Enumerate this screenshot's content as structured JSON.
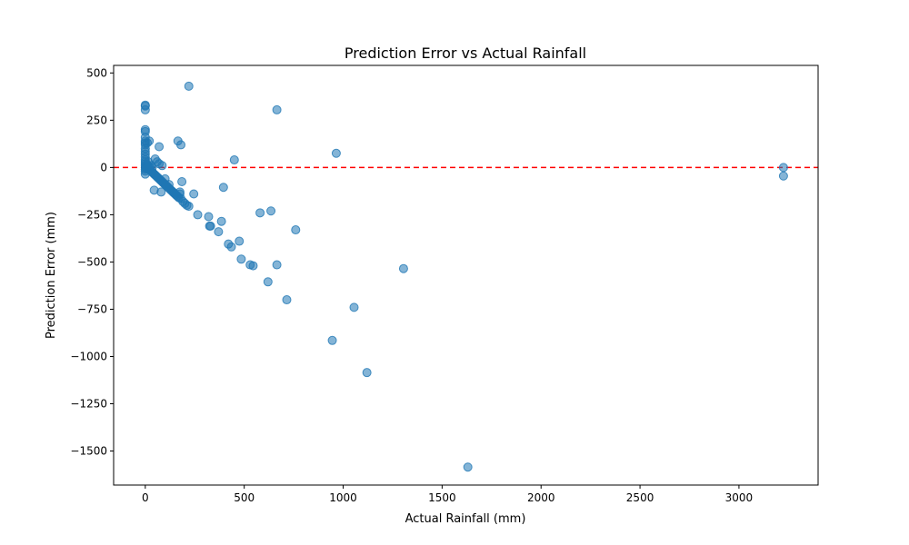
{
  "chart_data": {
    "type": "scatter",
    "title": "Prediction Error vs Actual Rainfall",
    "xlabel": "Actual Rainfall (mm)",
    "ylabel": "Prediction Error (mm)",
    "xlim": [
      -160,
      3400
    ],
    "ylim": [
      -1680,
      540
    ],
    "xticks": [
      0,
      500,
      1000,
      1500,
      2000,
      2500,
      3000
    ],
    "xtick_labels": [
      "0",
      "500",
      "1000",
      "1500",
      "2000",
      "2500",
      "3000"
    ],
    "yticks": [
      500,
      250,
      0,
      -250,
      -500,
      -750,
      -1000,
      -1250,
      -1500
    ],
    "ytick_labels": [
      "500",
      "250",
      "0",
      "−250",
      "−500",
      "−750",
      "−1000",
      "−1250",
      "−1500"
    ],
    "reference_line": {
      "y": 0,
      "color": "#ff0000",
      "style": "dashed"
    },
    "point_color": "#1f77b4",
    "point_alpha": 0.55,
    "grid": false,
    "points": [
      [
        0,
        330
      ],
      [
        0,
        325
      ],
      [
        0,
        305
      ],
      [
        0,
        200
      ],
      [
        0,
        190
      ],
      [
        0,
        160
      ],
      [
        0,
        140
      ],
      [
        0,
        130
      ],
      [
        0,
        120
      ],
      [
        0,
        100
      ],
      [
        0,
        85
      ],
      [
        0,
        70
      ],
      [
        0,
        55
      ],
      [
        0,
        40
      ],
      [
        0,
        30
      ],
      [
        0,
        20
      ],
      [
        0,
        10
      ],
      [
        0,
        0
      ],
      [
        0,
        -10
      ],
      [
        0,
        -20
      ],
      [
        0,
        -35
      ],
      [
        5,
        10
      ],
      [
        5,
        -5
      ],
      [
        10,
        130
      ],
      [
        10,
        15
      ],
      [
        10,
        0
      ],
      [
        15,
        30
      ],
      [
        20,
        140
      ],
      [
        20,
        5
      ],
      [
        20,
        -10
      ],
      [
        25,
        -5
      ],
      [
        25,
        -15
      ],
      [
        30,
        10
      ],
      [
        30,
        -20
      ],
      [
        35,
        0
      ],
      [
        35,
        -25
      ],
      [
        40,
        -30
      ],
      [
        45,
        -35
      ],
      [
        45,
        -120
      ],
      [
        50,
        45
      ],
      [
        50,
        -40
      ],
      [
        55,
        -45
      ],
      [
        60,
        30
      ],
      [
        60,
        -50
      ],
      [
        65,
        -55
      ],
      [
        70,
        20
      ],
      [
        70,
        110
      ],
      [
        70,
        -60
      ],
      [
        75,
        -65
      ],
      [
        80,
        -130
      ],
      [
        80,
        -70
      ],
      [
        85,
        10
      ],
      [
        85,
        -75
      ],
      [
        90,
        -80
      ],
      [
        95,
        -85
      ],
      [
        100,
        -90
      ],
      [
        100,
        -60
      ],
      [
        105,
        -95
      ],
      [
        110,
        -100
      ],
      [
        115,
        -105
      ],
      [
        120,
        -110
      ],
      [
        120,
        -90
      ],
      [
        125,
        -115
      ],
      [
        130,
        -120
      ],
      [
        135,
        -125
      ],
      [
        140,
        -130
      ],
      [
        145,
        -135
      ],
      [
        150,
        -140
      ],
      [
        155,
        -145
      ],
      [
        160,
        -150
      ],
      [
        165,
        140
      ],
      [
        165,
        -155
      ],
      [
        170,
        -160
      ],
      [
        175,
        -130
      ],
      [
        175,
        -140
      ],
      [
        180,
        120
      ],
      [
        180,
        -165
      ],
      [
        185,
        -75
      ],
      [
        190,
        -180
      ],
      [
        200,
        -190
      ],
      [
        210,
        -200
      ],
      [
        220,
        430
      ],
      [
        220,
        -205
      ],
      [
        245,
        -140
      ],
      [
        265,
        -250
      ],
      [
        320,
        -260
      ],
      [
        325,
        -310
      ],
      [
        330,
        -310
      ],
      [
        370,
        -340
      ],
      [
        385,
        -285
      ],
      [
        395,
        -105
      ],
      [
        420,
        -405
      ],
      [
        435,
        -420
      ],
      [
        450,
        40
      ],
      [
        475,
        -390
      ],
      [
        485,
        -485
      ],
      [
        530,
        -515
      ],
      [
        545,
        -520
      ],
      [
        580,
        -240
      ],
      [
        620,
        -605
      ],
      [
        635,
        -230
      ],
      [
        665,
        305
      ],
      [
        665,
        -515
      ],
      [
        715,
        -700
      ],
      [
        760,
        -330
      ],
      [
        945,
        -915
      ],
      [
        965,
        75
      ],
      [
        1055,
        -740
      ],
      [
        1120,
        -1085
      ],
      [
        1305,
        -535
      ],
      [
        1630,
        -1585
      ],
      [
        3225,
        0
      ],
      [
        3225,
        -45
      ]
    ]
  }
}
